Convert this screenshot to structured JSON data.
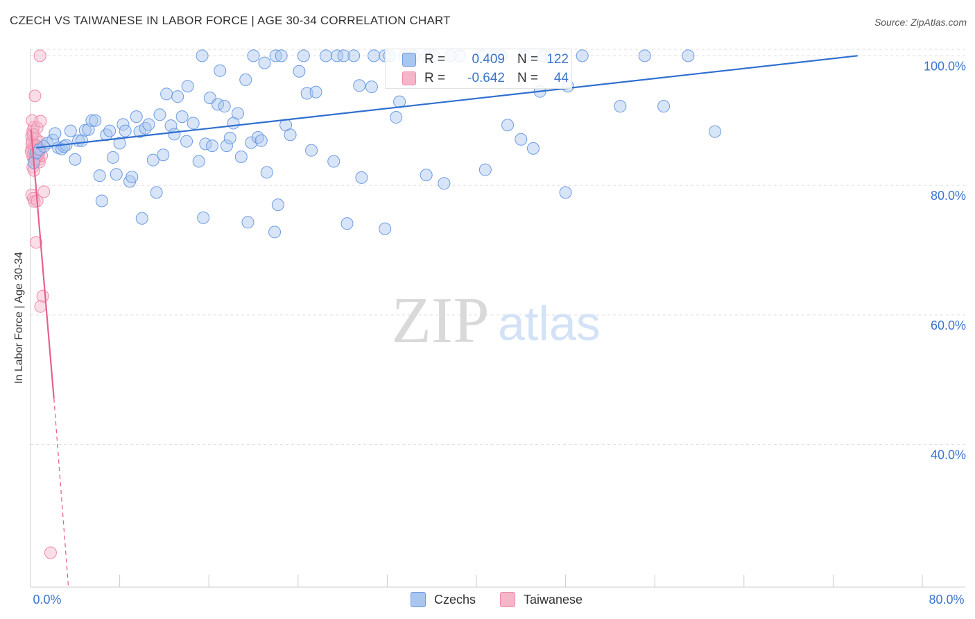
{
  "header": {
    "title": "CZECH VS TAIWANESE IN LABOR FORCE | AGE 30-34 CORRELATION CHART",
    "source": "Source: ZipAtlas.com"
  },
  "watermark": {
    "zip": "ZIP",
    "atlas": "atlas"
  },
  "legend": {
    "czechs": {
      "r_label": "R =",
      "r_value": "0.409",
      "n_label": "N =",
      "n_value": "122"
    },
    "taiwanese": {
      "r_label": "R =",
      "r_value": "-0.642",
      "n_label": "N =",
      "n_value": "44"
    }
  },
  "colors": {
    "czechs_fill": "#a9c6ef",
    "czechs_stroke": "#6b9be0",
    "czechs_line": "#2f6fd0",
    "taiwanese_fill": "#f5b6c9",
    "taiwanese_stroke": "#ee8aa9",
    "taiwanese_line": "#e8608d",
    "axis_text": "#3d74cc"
  },
  "chart_data": {
    "type": "scatter",
    "title": "CZECH VS TAIWANESE IN LABOR FORCE | AGE 30-34 CORRELATION CHART",
    "xlabel": "",
    "ylabel": "In Labor Force | Age 30-34",
    "xlim": [
      0,
      80
    ],
    "ylim": [
      18,
      101
    ],
    "x_tick_labels": [
      {
        "value": 0,
        "label": "0.0%"
      },
      {
        "value": 80,
        "label": "80.0%"
      }
    ],
    "y_tick_labels": [
      {
        "value": 40,
        "label": "40.0%"
      },
      {
        "value": 60,
        "label": "60.0%"
      },
      {
        "value": 80,
        "label": "80.0%"
      },
      {
        "value": 100,
        "label": "100.0%"
      }
    ],
    "legend": [
      "Czechs",
      "Taiwanese"
    ],
    "series": [
      {
        "name": "Czechs",
        "r": 0.409,
        "n": 122,
        "trend": {
          "x": [
            0.5,
            74.2
          ],
          "y": [
            85.8,
            100.0
          ],
          "style": "solid"
        },
        "points": [
          {
            "x": 0.3,
            "y": 83.5
          },
          {
            "x": 0.5,
            "y": 85.0
          },
          {
            "x": 0.8,
            "y": 85.5
          },
          {
            "x": 1.2,
            "y": 86.0
          },
          {
            "x": 1.5,
            "y": 86.5
          },
          {
            "x": 2.0,
            "y": 87.0
          },
          {
            "x": 2.2,
            "y": 88.0
          },
          {
            "x": 2.5,
            "y": 85.8
          },
          {
            "x": 2.8,
            "y": 85.6
          },
          {
            "x": 3.0,
            "y": 86.0
          },
          {
            "x": 3.2,
            "y": 86.2
          },
          {
            "x": 3.6,
            "y": 88.4
          },
          {
            "x": 4.0,
            "y": 84.0
          },
          {
            "x": 4.3,
            "y": 86.9
          },
          {
            "x": 4.6,
            "y": 86.9
          },
          {
            "x": 4.9,
            "y": 88.5
          },
          {
            "x": 5.2,
            "y": 88.6
          },
          {
            "x": 5.5,
            "y": 90.0
          },
          {
            "x": 5.8,
            "y": 90.0
          },
          {
            "x": 6.2,
            "y": 81.5
          },
          {
            "x": 6.4,
            "y": 77.6
          },
          {
            "x": 6.8,
            "y": 87.8
          },
          {
            "x": 7.1,
            "y": 88.4
          },
          {
            "x": 7.4,
            "y": 84.3
          },
          {
            "x": 7.7,
            "y": 81.7
          },
          {
            "x": 8.0,
            "y": 86.5
          },
          {
            "x": 8.3,
            "y": 89.4
          },
          {
            "x": 8.5,
            "y": 88.4
          },
          {
            "x": 8.9,
            "y": 80.6
          },
          {
            "x": 9.1,
            "y": 81.3
          },
          {
            "x": 9.5,
            "y": 90.6
          },
          {
            "x": 9.8,
            "y": 88.3
          },
          {
            "x": 10.0,
            "y": 74.9
          },
          {
            "x": 10.3,
            "y": 88.8
          },
          {
            "x": 10.6,
            "y": 89.4
          },
          {
            "x": 11.0,
            "y": 83.9
          },
          {
            "x": 11.3,
            "y": 78.9
          },
          {
            "x": 11.6,
            "y": 90.9
          },
          {
            "x": 11.9,
            "y": 84.7
          },
          {
            "x": 12.2,
            "y": 94.1
          },
          {
            "x": 12.6,
            "y": 89.2
          },
          {
            "x": 12.9,
            "y": 87.9
          },
          {
            "x": 13.2,
            "y": 93.7
          },
          {
            "x": 13.6,
            "y": 90.6
          },
          {
            "x": 14.0,
            "y": 86.8
          },
          {
            "x": 14.1,
            "y": 95.3
          },
          {
            "x": 14.6,
            "y": 89.6
          },
          {
            "x": 15.1,
            "y": 83.7
          },
          {
            "x": 15.5,
            "y": 75.0
          },
          {
            "x": 15.7,
            "y": 86.4
          },
          {
            "x": 16.1,
            "y": 93.5
          },
          {
            "x": 16.3,
            "y": 86.1
          },
          {
            "x": 16.8,
            "y": 92.5
          },
          {
            "x": 17.0,
            "y": 97.7
          },
          {
            "x": 17.4,
            "y": 92.2
          },
          {
            "x": 17.6,
            "y": 86.1
          },
          {
            "x": 17.9,
            "y": 87.3
          },
          {
            "x": 18.2,
            "y": 89.6
          },
          {
            "x": 18.6,
            "y": 91.1
          },
          {
            "x": 18.9,
            "y": 84.4
          },
          {
            "x": 19.3,
            "y": 96.3
          },
          {
            "x": 19.5,
            "y": 74.3
          },
          {
            "x": 19.8,
            "y": 86.6
          },
          {
            "x": 20.4,
            "y": 87.4
          },
          {
            "x": 20.7,
            "y": 86.9
          },
          {
            "x": 21.0,
            "y": 98.9
          },
          {
            "x": 21.2,
            "y": 82.0
          },
          {
            "x": 21.9,
            "y": 72.8
          },
          {
            "x": 22.2,
            "y": 77.0
          },
          {
            "x": 22.9,
            "y": 89.3
          },
          {
            "x": 23.3,
            "y": 87.8
          },
          {
            "x": 24.1,
            "y": 97.6
          },
          {
            "x": 24.8,
            "y": 94.2
          },
          {
            "x": 25.2,
            "y": 85.4
          },
          {
            "x": 25.6,
            "y": 94.4
          },
          {
            "x": 27.2,
            "y": 83.7
          },
          {
            "x": 28.4,
            "y": 74.1
          },
          {
            "x": 29.5,
            "y": 95.4
          },
          {
            "x": 30.6,
            "y": 95.2
          },
          {
            "x": 29.7,
            "y": 81.2
          },
          {
            "x": 31.8,
            "y": 73.3
          },
          {
            "x": 32.8,
            "y": 90.5
          },
          {
            "x": 33.1,
            "y": 92.9
          },
          {
            "x": 35.5,
            "y": 81.6
          },
          {
            "x": 37.1,
            "y": 80.3
          },
          {
            "x": 40.8,
            "y": 82.4
          },
          {
            "x": 42.8,
            "y": 89.3
          },
          {
            "x": 44.0,
            "y": 87.1
          },
          {
            "x": 45.1,
            "y": 85.7
          },
          {
            "x": 45.7,
            "y": 94.5
          },
          {
            "x": 48.0,
            "y": 78.9
          },
          {
            "x": 48.2,
            "y": 95.3
          },
          {
            "x": 52.9,
            "y": 92.2
          },
          {
            "x": 56.8,
            "y": 92.2
          },
          {
            "x": 61.4,
            "y": 88.3
          },
          {
            "x": 15.4,
            "y": 100
          },
          {
            "x": 20.0,
            "y": 100
          },
          {
            "x": 22.0,
            "y": 100
          },
          {
            "x": 22.5,
            "y": 100
          },
          {
            "x": 24.5,
            "y": 100
          },
          {
            "x": 26.5,
            "y": 100
          },
          {
            "x": 27.5,
            "y": 100
          },
          {
            "x": 29.0,
            "y": 100
          },
          {
            "x": 30.8,
            "y": 100
          },
          {
            "x": 31.8,
            "y": 100
          },
          {
            "x": 33.6,
            "y": 100
          },
          {
            "x": 34.4,
            "y": 100
          },
          {
            "x": 35.6,
            "y": 100
          },
          {
            "x": 37.7,
            "y": 100
          },
          {
            "x": 38.5,
            "y": 100
          },
          {
            "x": 40.5,
            "y": 100
          },
          {
            "x": 41.5,
            "y": 100
          },
          {
            "x": 44.3,
            "y": 100
          },
          {
            "x": 46.0,
            "y": 100
          },
          {
            "x": 46.7,
            "y": 100
          },
          {
            "x": 49.5,
            "y": 100
          },
          {
            "x": 55.1,
            "y": 100
          },
          {
            "x": 59.0,
            "y": 100
          },
          {
            "x": 42.2,
            "y": 100
          },
          {
            "x": 36.2,
            "y": 100
          },
          {
            "x": 28.1,
            "y": 100
          },
          {
            "x": 32.2,
            "y": 100
          }
        ]
      },
      {
        "name": "Taiwanese",
        "r": -0.642,
        "n": 44,
        "trend": {
          "x": [
            0.05,
            2.1
          ],
          "y": [
            88.6,
            47.1
          ],
          "style": "solid",
          "extended_to": {
            "x": 3.4,
            "y": 18.0
          }
        },
        "points": [
          {
            "x": 0.1,
            "y": 85.6
          },
          {
            "x": 0.15,
            "y": 86.8
          },
          {
            "x": 0.2,
            "y": 84.4
          },
          {
            "x": 0.25,
            "y": 85.0
          },
          {
            "x": 0.3,
            "y": 83.8
          },
          {
            "x": 0.35,
            "y": 86.2
          },
          {
            "x": 0.1,
            "y": 87.6
          },
          {
            "x": 0.2,
            "y": 88.4
          },
          {
            "x": 0.3,
            "y": 89.0
          },
          {
            "x": 0.15,
            "y": 90.0
          },
          {
            "x": 0.4,
            "y": 84.9
          },
          {
            "x": 0.45,
            "y": 85.9
          },
          {
            "x": 0.5,
            "y": 87.2
          },
          {
            "x": 0.55,
            "y": 84.3
          },
          {
            "x": 0.6,
            "y": 88.9
          },
          {
            "x": 0.65,
            "y": 86.0
          },
          {
            "x": 0.7,
            "y": 85.3
          },
          {
            "x": 0.75,
            "y": 84.0
          },
          {
            "x": 0.8,
            "y": 83.6
          },
          {
            "x": 0.85,
            "y": 86.7
          },
          {
            "x": 0.9,
            "y": 89.9
          },
          {
            "x": 1.0,
            "y": 84.6
          },
          {
            "x": 0.2,
            "y": 82.8
          },
          {
            "x": 0.3,
            "y": 82.3
          },
          {
            "x": 0.1,
            "y": 78.5
          },
          {
            "x": 0.25,
            "y": 78.0
          },
          {
            "x": 0.35,
            "y": 77.5
          },
          {
            "x": 0.6,
            "y": 77.6
          },
          {
            "x": 1.2,
            "y": 79.0
          },
          {
            "x": 0.5,
            "y": 71.2
          },
          {
            "x": 0.4,
            "y": 93.8
          },
          {
            "x": 0.85,
            "y": 100
          },
          {
            "x": 1.1,
            "y": 62.9
          },
          {
            "x": 0.9,
            "y": 61.3
          },
          {
            "x": 1.8,
            "y": 23.3
          },
          {
            "x": 0.05,
            "y": 85.2
          },
          {
            "x": 0.12,
            "y": 86.4
          },
          {
            "x": 0.22,
            "y": 87.9
          },
          {
            "x": 0.32,
            "y": 85.5
          },
          {
            "x": 0.42,
            "y": 84.1
          },
          {
            "x": 0.52,
            "y": 86.1
          },
          {
            "x": 0.62,
            "y": 85.0
          },
          {
            "x": 0.72,
            "y": 84.8
          },
          {
            "x": 0.82,
            "y": 85.7
          }
        ]
      }
    ],
    "legend_stats": {
      "position": "top-center"
    },
    "grid": true
  }
}
